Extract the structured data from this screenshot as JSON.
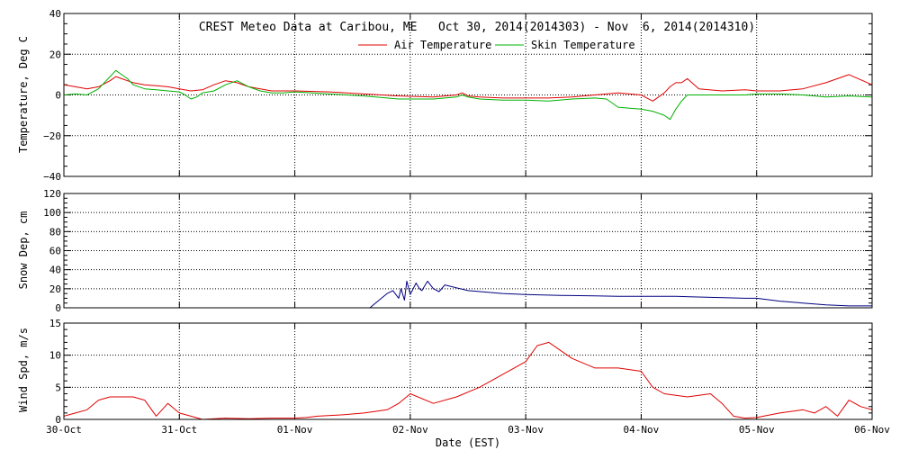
{
  "chart_data": [
    {
      "type": "line",
      "title": "CREST Meteo Data at Caribou, ME   Oct 30, 2014(2014303) - Nov  6, 2014(2014310)",
      "xlabel": "",
      "ylabel": "Temperature, Deg C",
      "ylim": [
        -40,
        40
      ],
      "yticks": [
        "40",
        "20",
        "0",
        "−20",
        "−40"
      ],
      "grid": true,
      "legend_position": "top-center",
      "x_unit": "days since 30-Oct 00:00 EST",
      "series": [
        {
          "name": "Air Temperature",
          "color": "#e00000",
          "x": [
            0,
            0.1,
            0.2,
            0.3,
            0.4,
            0.45,
            0.5,
            0.55,
            0.6,
            0.7,
            0.8,
            0.9,
            1.0,
            1.1,
            1.2,
            1.3,
            1.4,
            1.5,
            1.6,
            1.7,
            1.8,
            1.9,
            2.0,
            2.3,
            2.6,
            2.9,
            3.2,
            3.4,
            3.45,
            3.5,
            3.6,
            3.8,
            4.0,
            4.2,
            4.4,
            4.6,
            4.8,
            4.9,
            5.0,
            5.05,
            5.1,
            5.2,
            5.25,
            5.3,
            5.35,
            5.4,
            5.5,
            5.7,
            5.9,
            6.0,
            6.2,
            6.4,
            6.6,
            6.8,
            7.0
          ],
          "y": [
            5,
            4,
            3,
            4,
            7,
            9,
            8,
            7,
            6,
            5,
            4.5,
            4,
            3,
            2,
            2.5,
            5,
            7,
            6,
            4,
            3,
            2,
            2,
            2,
            1.5,
            0.5,
            -0.5,
            -1,
            0,
            1,
            -0.5,
            -1,
            -1.5,
            -1.5,
            -1.5,
            -1,
            0,
            1,
            0.5,
            0,
            -1.5,
            -3,
            1,
            4,
            6,
            6,
            8,
            3,
            2,
            2.5,
            2,
            2,
            3,
            6,
            10,
            5
          ]
        },
        {
          "name": "Skin Temperature",
          "color": "#00b000",
          "x": [
            0,
            0.1,
            0.2,
            0.3,
            0.4,
            0.45,
            0.5,
            0.55,
            0.6,
            0.7,
            0.8,
            0.9,
            1.0,
            1.05,
            1.1,
            1.15,
            1.2,
            1.3,
            1.4,
            1.5,
            1.6,
            1.7,
            1.8,
            1.9,
            2.0,
            2.3,
            2.6,
            2.9,
            3.2,
            3.4,
            3.45,
            3.5,
            3.6,
            3.8,
            4.0,
            4.2,
            4.4,
            4.6,
            4.7,
            4.8,
            4.9,
            5.0,
            5.1,
            5.2,
            5.25,
            5.3,
            5.35,
            5.4,
            5.5,
            5.7,
            5.9,
            6.0,
            6.2,
            6.4,
            6.6,
            6.8,
            7.0
          ],
          "y": [
            0,
            0.5,
            0,
            3,
            9,
            12,
            10,
            8,
            5,
            3,
            2.5,
            2,
            1.5,
            0,
            -2,
            -1,
            1,
            2,
            5,
            7,
            4,
            2,
            1,
            1,
            1.5,
            0.5,
            -0.5,
            -2,
            -2,
            -1,
            0,
            -1,
            -2,
            -2.5,
            -2.5,
            -3,
            -2,
            -1.5,
            -2,
            -6,
            -6.5,
            -7,
            -8,
            -10,
            -12,
            -7,
            -3,
            0,
            0,
            0,
            0,
            0.5,
            0.5,
            0,
            -1,
            -0.5,
            -1
          ]
        }
      ]
    },
    {
      "type": "line",
      "title": "",
      "xlabel": "",
      "ylabel": "Snow Dep, cm",
      "ylim": [
        0,
        120
      ],
      "yticks": [
        "120",
        "100",
        "80",
        "60",
        "40",
        "20",
        "0"
      ],
      "grid": true,
      "x_unit": "days since 30-Oct 00:00 EST",
      "series": [
        {
          "name": "Snow Depth",
          "color": "#000080",
          "x": [
            2.65,
            2.75,
            2.8,
            2.85,
            2.9,
            2.92,
            2.95,
            2.97,
            3.0,
            3.05,
            3.08,
            3.1,
            3.15,
            3.2,
            3.25,
            3.3,
            3.5,
            3.8,
            4.0,
            4.3,
            4.6,
            4.8,
            5.0,
            5.3,
            5.6,
            5.9,
            6.0,
            6.2,
            6.4,
            6.6,
            6.8,
            7.0
          ],
          "y": [
            0,
            10,
            15,
            18,
            10,
            20,
            8,
            28,
            14,
            26,
            20,
            18,
            28,
            20,
            17,
            24,
            18,
            15,
            14,
            13,
            12.5,
            12,
            12,
            12,
            11,
            10,
            10,
            7,
            5,
            3,
            2,
            2
          ]
        }
      ]
    },
    {
      "type": "line",
      "title": "",
      "xlabel": "Date (EST)",
      "ylabel": "Wind Spd, m/s",
      "ylim": [
        0,
        15
      ],
      "yticks": [
        "15",
        "10",
        "5",
        "0"
      ],
      "xticks": [
        "30-Oct",
        "31-Oct",
        "01-Nov",
        "02-Nov",
        "03-Nov",
        "04-Nov",
        "05-Nov",
        "06-Nov"
      ],
      "grid": true,
      "x_unit": "days since 30-Oct 00:00 EST",
      "series": [
        {
          "name": "Wind Speed",
          "color": "#e00000",
          "x": [
            0,
            0.1,
            0.2,
            0.3,
            0.4,
            0.5,
            0.6,
            0.7,
            0.8,
            0.9,
            1.0,
            1.1,
            1.2,
            1.4,
            1.6,
            1.8,
            2.0,
            2.1,
            2.2,
            2.4,
            2.6,
            2.8,
            2.9,
            3.0,
            3.2,
            3.4,
            3.6,
            3.8,
            4.0,
            4.1,
            4.2,
            4.4,
            4.6,
            4.8,
            5.0,
            5.1,
            5.2,
            5.4,
            5.6,
            5.7,
            5.8,
            5.9,
            6.0,
            6.2,
            6.4,
            6.5,
            6.6,
            6.7,
            6.8,
            6.9,
            7.0
          ],
          "y": [
            0.5,
            1,
            1.5,
            3,
            3.5,
            3.5,
            3.5,
            3,
            0.5,
            2.5,
            1,
            0.5,
            0,
            0.2,
            0.1,
            0.2,
            0.2,
            0.3,
            0.5,
            0.7,
            1,
            1.5,
            2.5,
            4,
            2.5,
            3.5,
            5,
            7,
            9,
            11.5,
            12,
            9.5,
            8,
            8,
            7.5,
            5,
            4,
            3.5,
            4,
            2.5,
            0.5,
            0.2,
            0.3,
            1,
            1.5,
            1,
            2,
            0.5,
            3,
            2,
            1.5
          ]
        }
      ]
    }
  ]
}
